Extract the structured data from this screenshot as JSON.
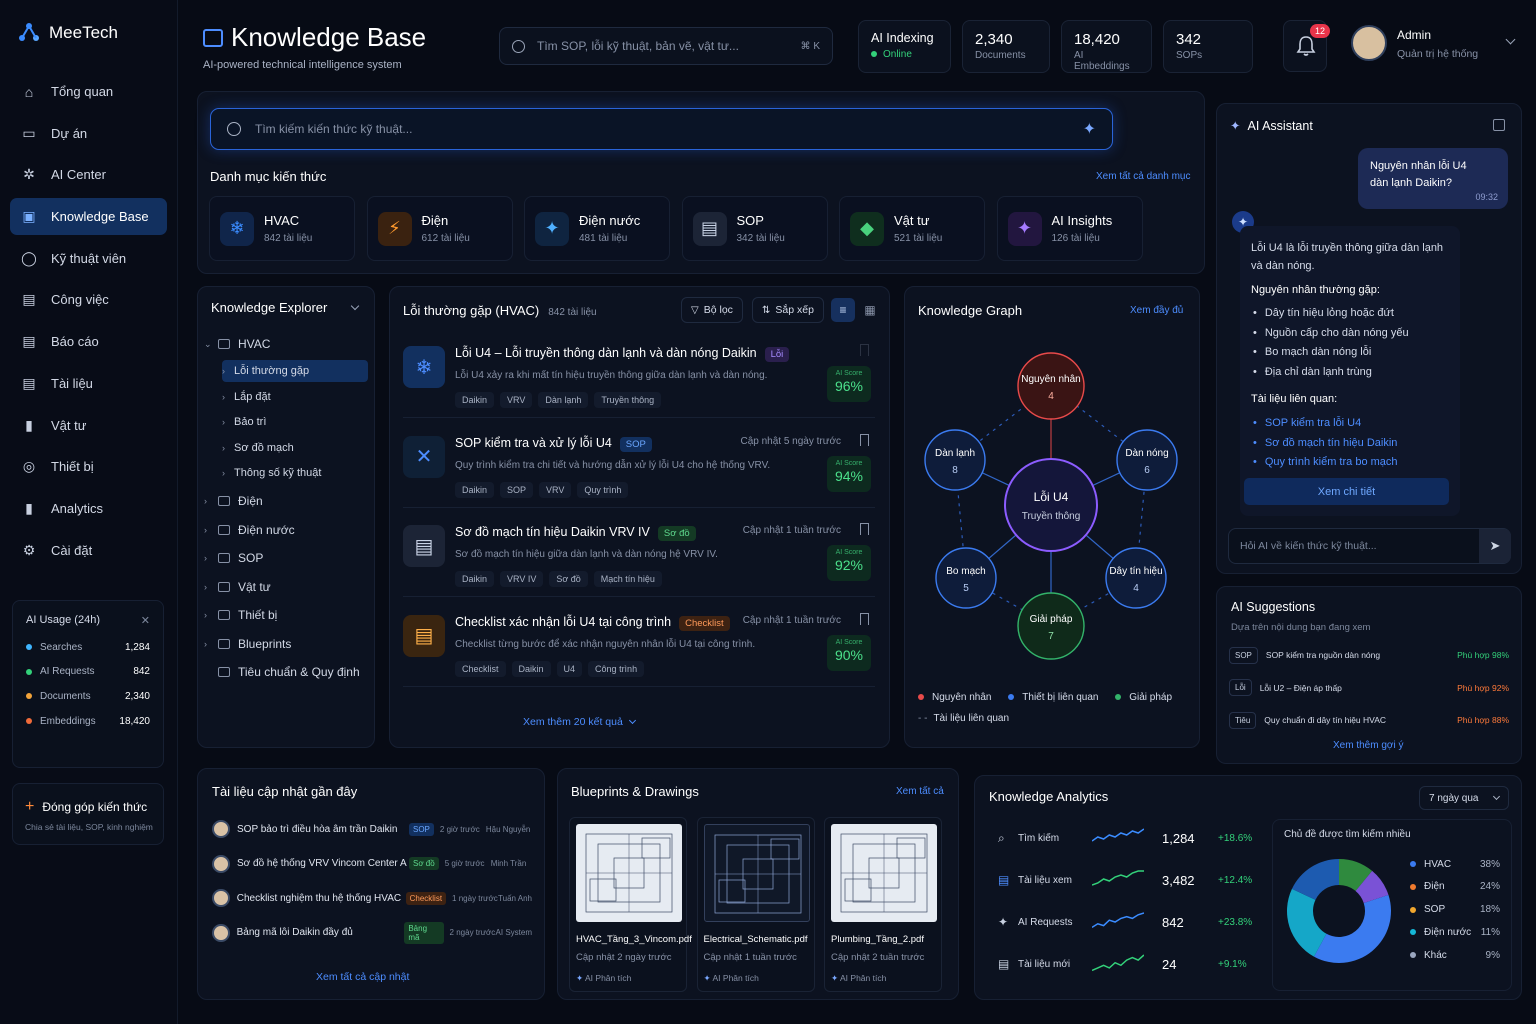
{
  "app": {
    "name": "MeeTech"
  },
  "nav": [
    {
      "label": "Tổng quan",
      "icon": "home-icon"
    },
    {
      "label": "Dự án",
      "icon": "folder-icon"
    },
    {
      "label": "AI Center",
      "icon": "chip-icon"
    },
    {
      "label": "Knowledge Base",
      "icon": "book-icon",
      "active": true
    },
    {
      "label": "Kỹ thuật viên",
      "icon": "user-icon"
    },
    {
      "label": "Công việc",
      "icon": "clipboard-icon"
    },
    {
      "label": "Báo cáo",
      "icon": "report-icon"
    },
    {
      "label": "Tài liệu",
      "icon": "document-icon"
    },
    {
      "label": "Vật tư",
      "icon": "bars-icon"
    },
    {
      "label": "Thiết bị",
      "icon": "device-icon"
    },
    {
      "label": "Analytics",
      "icon": "analytics-icon"
    },
    {
      "label": "Cài đặt",
      "icon": "gear-icon"
    }
  ],
  "usage": {
    "title": "AI Usage (24h)",
    "rows": [
      {
        "label": "Searches",
        "value": "1,284",
        "color": "#3fb6ff"
      },
      {
        "label": "AI Requests",
        "value": "842",
        "color": "#33d17a"
      },
      {
        "label": "Documents",
        "value": "2,340",
        "color": "#f2a33a"
      },
      {
        "label": "Embeddings",
        "value": "18,420",
        "color": "#f06b3a"
      }
    ]
  },
  "contribute": {
    "title": "Đóng góp kiến thức",
    "subtitle": "Chia sẻ tài liệu, SOP, kinh nghiệm"
  },
  "header": {
    "title": "Knowledge Base",
    "subtitle": "AI-powered technical intelligence system",
    "search_placeholder": "Tìm SOP, lỗi kỹ thuật, bản vẽ, vật tư...",
    "shortcut": "⌘ K",
    "indexing": {
      "label": "AI Indexing",
      "status": "Online"
    },
    "stats": [
      {
        "value": "2,340",
        "label": "Documents"
      },
      {
        "value": "18,420",
        "label": "AI Embeddings"
      },
      {
        "value": "342",
        "label": "SOPs"
      }
    ],
    "notifications": "12",
    "user": {
      "name": "Admin",
      "role": "Quản trị hệ thống"
    }
  },
  "main_search": {
    "placeholder": "Tìm kiếm kiến thức kỹ thuật..."
  },
  "categories": {
    "title": "Danh mục kiến thức",
    "view_all": "Xem tất cả danh mục",
    "items": [
      {
        "name": "HVAC",
        "count": "842 tài liệu",
        "icon": "snowflake-icon",
        "glyph": "❄",
        "color": "#3b8cff",
        "bg": "#10254a"
      },
      {
        "name": "Điện",
        "count": "612 tài liệu",
        "icon": "lightning-icon",
        "glyph": "⚡",
        "color": "#ff9a2e",
        "bg": "#3a2210"
      },
      {
        "name": "Điện nước",
        "count": "481 tài liệu",
        "icon": "sparkle-icon",
        "glyph": "✦",
        "color": "#4fb0ff",
        "bg": "#0f2440"
      },
      {
        "name": "SOP",
        "count": "342 tài liệu",
        "icon": "document-icon",
        "glyph": "▤",
        "color": "#c9d3e6",
        "bg": "#1c2436"
      },
      {
        "name": "Vật tư",
        "count": "521 tài liệu",
        "icon": "cube-icon",
        "glyph": "◆",
        "color": "#49d17d",
        "bg": "#0f2e1e"
      },
      {
        "name": "AI Insights",
        "count": "126 tài liệu",
        "icon": "ai-sparkle-icon",
        "glyph": "✦",
        "color": "#a67bff",
        "bg": "#22163f"
      }
    ]
  },
  "explorer": {
    "title": "Knowledge Explorer",
    "root": "HVAC",
    "children": [
      "Lỗi thường gặp",
      "Lắp đặt",
      "Bảo trì",
      "Sơ đồ mạch",
      "Thông số kỹ thuật"
    ],
    "folders": [
      "Điện",
      "Điện nước",
      "SOP",
      "Vật tư",
      "Thiết bị",
      "Blueprints",
      "Tiêu chuẩn & Quy định"
    ]
  },
  "list": {
    "title": "Lỗi thường gặp (HVAC)",
    "count": "842 tài liệu",
    "filter": "Bộ lọc",
    "sort": "Sắp xếp",
    "more": "Xem thêm 20 kết quả",
    "score_label": "AI Score",
    "articles": [
      {
        "title": "Lỗi U4 – Lỗi truyền thông dàn lạnh và dàn nóng Daikin",
        "badge": "Lỗi",
        "badge_color": "#a68bff",
        "badge_bg": "#2a1f4d",
        "desc": "Lỗi U4 xảy ra khi mất tín hiệu truyền thông giữa dàn lạnh và dàn nóng.",
        "tags": [
          "Daikin",
          "VRV",
          "Dàn lạnh",
          "Truyền thông"
        ],
        "updated": "",
        "score": "96%",
        "icon": "snowflake-doc-icon",
        "glyph": "❄",
        "icolor": "#4d8dff",
        "ibg": "#12305f"
      },
      {
        "title": "SOP kiểm tra và xử lý lỗi U4",
        "badge": "SOP",
        "badge_color": "#6aa6ff",
        "badge_bg": "#12305f",
        "desc": "Quy trình kiểm tra chi tiết và hướng dẫn xử lý lỗi U4 cho hệ thống VRV.",
        "tags": [
          "Daikin",
          "SOP",
          "VRV",
          "Quy trình"
        ],
        "updated": "Cập nhật 5 ngày trước",
        "score": "94%",
        "icon": "wrench-icon",
        "glyph": "✕",
        "icolor": "#4d8dff",
        "ibg": "#0f2036"
      },
      {
        "title": "Sơ đồ mạch tín hiệu Daikin VRV IV",
        "badge": "Sơ đồ",
        "badge_color": "#5fd98e",
        "badge_bg": "#143a24",
        "desc": "Sơ đồ mạch tín hiệu giữa dàn lạnh và dàn nóng hệ VRV IV.",
        "tags": [
          "Daikin",
          "VRV IV",
          "Sơ đồ",
          "Mạch tín hiệu"
        ],
        "updated": "Cập nhật 1 tuần trước",
        "score": "92%",
        "icon": "document-icon",
        "glyph": "▤",
        "icolor": "#c9d3e6",
        "ibg": "#1c2436"
      },
      {
        "title": "Checklist xác nhận lỗi U4 tại công trình",
        "badge": "Checklist",
        "badge_color": "#ff9a5a",
        "badge_bg": "#3d2212",
        "desc": "Checklist từng bước để xác nhận nguyên nhân lỗi U4 tại công trình.",
        "tags": [
          "Checklist",
          "Daikin",
          "U4",
          "Công trình"
        ],
        "updated": "Cập nhật 1 tuần trước",
        "score": "90%",
        "icon": "checklist-icon",
        "glyph": "▤",
        "icolor": "#ffb04a",
        "ibg": "#3a2510"
      }
    ]
  },
  "graph": {
    "title": "Knowledge Graph",
    "view_all": "Xem đầy đủ",
    "center": {
      "label": "Lỗi U4",
      "sub": "Truyền thông"
    },
    "nodes": [
      {
        "label": "Nguyên nhân",
        "count": "4"
      },
      {
        "label": "Dàn lạnh",
        "count": "8"
      },
      {
        "label": "Dàn nóng",
        "count": "6"
      },
      {
        "label": "Bo mạch",
        "count": "5"
      },
      {
        "label": "Dây tín hiệu",
        "count": "4"
      },
      {
        "label": "Giải pháp",
        "count": "7"
      }
    ],
    "legend": [
      "Nguyên nhân",
      "Thiết bị liên quan",
      "Giải pháp",
      "Tài liệu liên quan"
    ]
  },
  "assistant": {
    "title": "AI Assistant",
    "user_msg": "Nguyên nhân lỗi U4 dàn lạnh Daikin?",
    "time": "09:32",
    "answer_intro": "Lỗi U4 là lỗi truyền thông giữa dàn lạnh và dàn nóng.",
    "causes_title": "Nguyên nhân thường gặp:",
    "causes": [
      "Dây tín hiệu lỏng hoặc đứt",
      "Nguồn cấp cho dàn nóng yếu",
      "Bo mạch dàn nóng lỗi",
      "Địa chỉ dàn lạnh trùng"
    ],
    "docs_title": "Tài liệu liên quan:",
    "docs": [
      "SOP kiểm tra lỗi U4",
      "Sơ đồ mạch tín hiệu Daikin",
      "Quy trình kiểm tra bo mạch"
    ],
    "view_detail": "Xem chi tiết",
    "input_placeholder": "Hỏi AI về kiến thức kỹ thuật..."
  },
  "suggestions": {
    "title": "AI Suggestions",
    "subtitle": "Dựa trên nội dung bạn đang xem",
    "items": [
      {
        "tag": "SOP",
        "text": "SOP kiểm tra nguồn dàn nóng",
        "match": "Phù hợp 98%",
        "color": "#33d17a"
      },
      {
        "tag": "Lỗi",
        "text": "Lỗi U2 – Điện áp thấp",
        "match": "Phù hợp 92%",
        "color": "#ff7a3a"
      },
      {
        "tag": "Tiêu",
        "text": "Quy chuẩn đi dây tín hiệu HVAC",
        "match": "Phù hợp 88%",
        "color": "#ff7a3a"
      }
    ],
    "more": "Xem thêm gợi ý"
  },
  "recent": {
    "title": "Tài liệu cập nhật gần đây",
    "items": [
      {
        "title": "SOP bảo trì điều hòa âm trần Daikin",
        "tag": "SOP",
        "tag_color": "#6aa6ff",
        "tag_bg": "#12305f",
        "time": "2 giờ trước",
        "author": "Hậu Nguyễn"
      },
      {
        "title": "Sơ đồ hệ thống VRV Vincom Center A",
        "tag": "Sơ đồ",
        "tag_color": "#5fd98e",
        "tag_bg": "#143a24",
        "time": "5 giờ trước",
        "author": "Minh Trần"
      },
      {
        "title": "Checklist nghiệm thu hệ thống HVAC",
        "tag": "Checklist",
        "tag_color": "#ff9a5a",
        "tag_bg": "#3d2212",
        "time": "1 ngày trước",
        "author": "Tuấn Anh"
      },
      {
        "title": "Bảng mã lỗi Daikin đầy đủ",
        "tag": "Bảng mã",
        "tag_color": "#5fd98e",
        "tag_bg": "#143a24",
        "time": "2 ngày trước",
        "author": "AI System"
      }
    ],
    "view_all": "Xem tất cả cập nhật"
  },
  "blueprints": {
    "title": "Blueprints & Drawings",
    "view_all": "Xem tất cả",
    "items": [
      {
        "name": "HVAC_Tầng_3_Vincom.pdf",
        "updated": "Cập nhật 2 ngày trước",
        "ai": "AI Phân tích",
        "dark": false
      },
      {
        "name": "Electrical_Schematic.pdf",
        "updated": "Cập nhật 1 tuần trước",
        "ai": "AI Phân tích",
        "dark": true
      },
      {
        "name": "Plumbing_Tầng_2.pdf",
        "updated": "Cập nhật 2 tuần trước",
        "ai": "AI Phân tích",
        "dark": false
      }
    ]
  },
  "analytics": {
    "title": "Knowledge Analytics",
    "range": "7 ngày qua",
    "rows": [
      {
        "label": "Tìm kiếm",
        "value": "1,284",
        "delta": "+18.6%",
        "icon": "search-icon",
        "spark": [
          3,
          5,
          4,
          6,
          5,
          7,
          6,
          8,
          7,
          9
        ]
      },
      {
        "label": "Tài liệu xem",
        "value": "3,482",
        "delta": "+12.4%",
        "icon": "document-icon",
        "spark": [
          2,
          3,
          5,
          4,
          6,
          7,
          6,
          8,
          9,
          9
        ]
      },
      {
        "label": "AI Requests",
        "value": "842",
        "delta": "+23.8%",
        "icon": "ai-icon",
        "spark": [
          2,
          4,
          3,
          6,
          5,
          7,
          8,
          7,
          9,
          10
        ]
      },
      {
        "label": "Tài liệu mới",
        "value": "24",
        "delta": "+9.1%",
        "icon": "file-icon",
        "spark": [
          1,
          2,
          3,
          2,
          4,
          3,
          5,
          6,
          5,
          7
        ]
      }
    ],
    "donut_title": "Chủ đề được tìm kiếm nhiều",
    "topics": [
      {
        "name": "HVAC",
        "pct": "38%",
        "value": 38,
        "color": "#3b7bf0"
      },
      {
        "name": "Điện",
        "pct": "24%",
        "value": 24,
        "color": "#15a7c8"
      },
      {
        "name": "SOP",
        "pct": "18%",
        "value": 18,
        "color": "#1d5bb0"
      },
      {
        "name": "Điện nước",
        "pct": "11%",
        "value": 11,
        "color": "#2f8a3e"
      },
      {
        "name": "Khác",
        "pct": "9%",
        "value": 9,
        "color": "#7a52d6"
      }
    ],
    "legend_colors": [
      "#3b7bf0",
      "#f07a2e",
      "#f2a72e",
      "#15b8d8",
      "#9aa6bf"
    ]
  }
}
